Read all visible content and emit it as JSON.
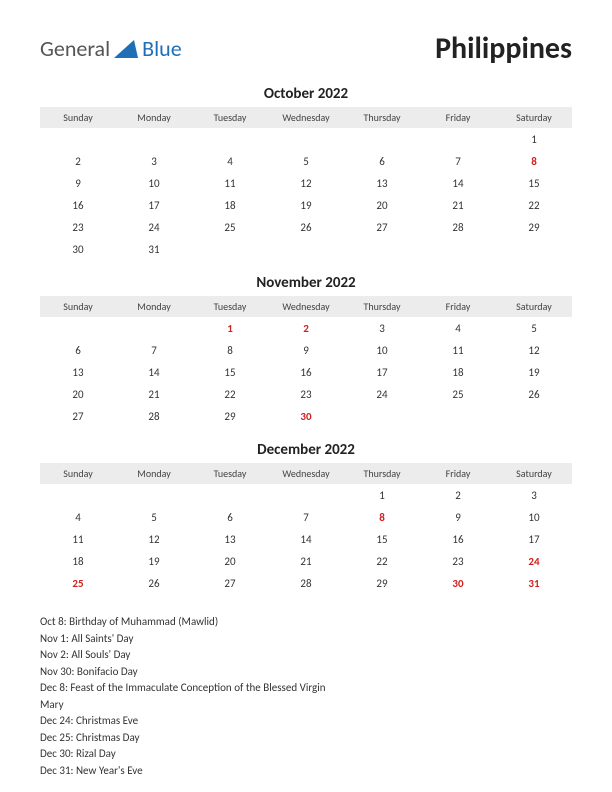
{
  "header": {
    "logo_word1": "General",
    "logo_word2": "Blue",
    "country": "Philippines",
    "logo_colors": {
      "word1": "#555555",
      "word2": "#1e6fb8",
      "triangle": "#1e6fb8"
    }
  },
  "weekdays": [
    "Sunday",
    "Monday",
    "Tuesday",
    "Wednesday",
    "Thursday",
    "Friday",
    "Saturday"
  ],
  "months": [
    {
      "title": "October 2022",
      "weeks": [
        [
          null,
          null,
          null,
          null,
          null,
          null,
          {
            "d": 1
          }
        ],
        [
          {
            "d": 2
          },
          {
            "d": 3
          },
          {
            "d": 4
          },
          {
            "d": 5
          },
          {
            "d": 6
          },
          {
            "d": 7
          },
          {
            "d": 8,
            "h": true
          }
        ],
        [
          {
            "d": 9
          },
          {
            "d": 10
          },
          {
            "d": 11
          },
          {
            "d": 12
          },
          {
            "d": 13
          },
          {
            "d": 14
          },
          {
            "d": 15
          }
        ],
        [
          {
            "d": 16
          },
          {
            "d": 17
          },
          {
            "d": 18
          },
          {
            "d": 19
          },
          {
            "d": 20
          },
          {
            "d": 21
          },
          {
            "d": 22
          }
        ],
        [
          {
            "d": 23
          },
          {
            "d": 24
          },
          {
            "d": 25
          },
          {
            "d": 26
          },
          {
            "d": 27
          },
          {
            "d": 28
          },
          {
            "d": 29
          }
        ],
        [
          {
            "d": 30
          },
          {
            "d": 31
          },
          null,
          null,
          null,
          null,
          null
        ]
      ]
    },
    {
      "title": "November 2022",
      "weeks": [
        [
          null,
          null,
          {
            "d": 1,
            "h": true
          },
          {
            "d": 2,
            "h": true
          },
          {
            "d": 3
          },
          {
            "d": 4
          },
          {
            "d": 5
          }
        ],
        [
          {
            "d": 6
          },
          {
            "d": 7
          },
          {
            "d": 8
          },
          {
            "d": 9
          },
          {
            "d": 10
          },
          {
            "d": 11
          },
          {
            "d": 12
          }
        ],
        [
          {
            "d": 13
          },
          {
            "d": 14
          },
          {
            "d": 15
          },
          {
            "d": 16
          },
          {
            "d": 17
          },
          {
            "d": 18
          },
          {
            "d": 19
          }
        ],
        [
          {
            "d": 20
          },
          {
            "d": 21
          },
          {
            "d": 22
          },
          {
            "d": 23
          },
          {
            "d": 24
          },
          {
            "d": 25
          },
          {
            "d": 26
          }
        ],
        [
          {
            "d": 27
          },
          {
            "d": 28
          },
          {
            "d": 29
          },
          {
            "d": 30,
            "h": true
          },
          null,
          null,
          null
        ]
      ]
    },
    {
      "title": "December 2022",
      "weeks": [
        [
          null,
          null,
          null,
          null,
          {
            "d": 1
          },
          {
            "d": 2
          },
          {
            "d": 3
          }
        ],
        [
          {
            "d": 4
          },
          {
            "d": 5
          },
          {
            "d": 6
          },
          {
            "d": 7
          },
          {
            "d": 8,
            "h": true
          },
          {
            "d": 9
          },
          {
            "d": 10
          }
        ],
        [
          {
            "d": 11
          },
          {
            "d": 12
          },
          {
            "d": 13
          },
          {
            "d": 14
          },
          {
            "d": 15
          },
          {
            "d": 16
          },
          {
            "d": 17
          }
        ],
        [
          {
            "d": 18
          },
          {
            "d": 19
          },
          {
            "d": 20
          },
          {
            "d": 21
          },
          {
            "d": 22
          },
          {
            "d": 23
          },
          {
            "d": 24,
            "h": true
          }
        ],
        [
          {
            "d": 25,
            "h": true
          },
          {
            "d": 26
          },
          {
            "d": 27
          },
          {
            "d": 28
          },
          {
            "d": 29
          },
          {
            "d": 30,
            "h": true
          },
          {
            "d": 31,
            "h": true
          }
        ]
      ]
    }
  ],
  "holidays": [
    "Oct 8: Birthday of Muhammad (Mawlid)",
    "Nov 1: All Saints' Day",
    "Nov 2: All Souls' Day",
    "Nov 30: Bonifacio Day",
    "Dec 8: Feast of the Immaculate Conception of the Blessed Virgin Mary",
    "Dec 24: Christmas Eve",
    "Dec 25: Christmas Day",
    "Dec 30: Rizal Day",
    "Dec 31: New Year's Eve"
  ],
  "styling": {
    "page_bg": "#ffffff",
    "header_bg": "#ececec",
    "text_color": "#333333",
    "holiday_color": "#d22020",
    "month_title_fontsize": 15,
    "weekday_fontsize": 10,
    "day_fontsize": 11,
    "holiday_list_fontsize": 11,
    "country_fontsize": 30
  }
}
